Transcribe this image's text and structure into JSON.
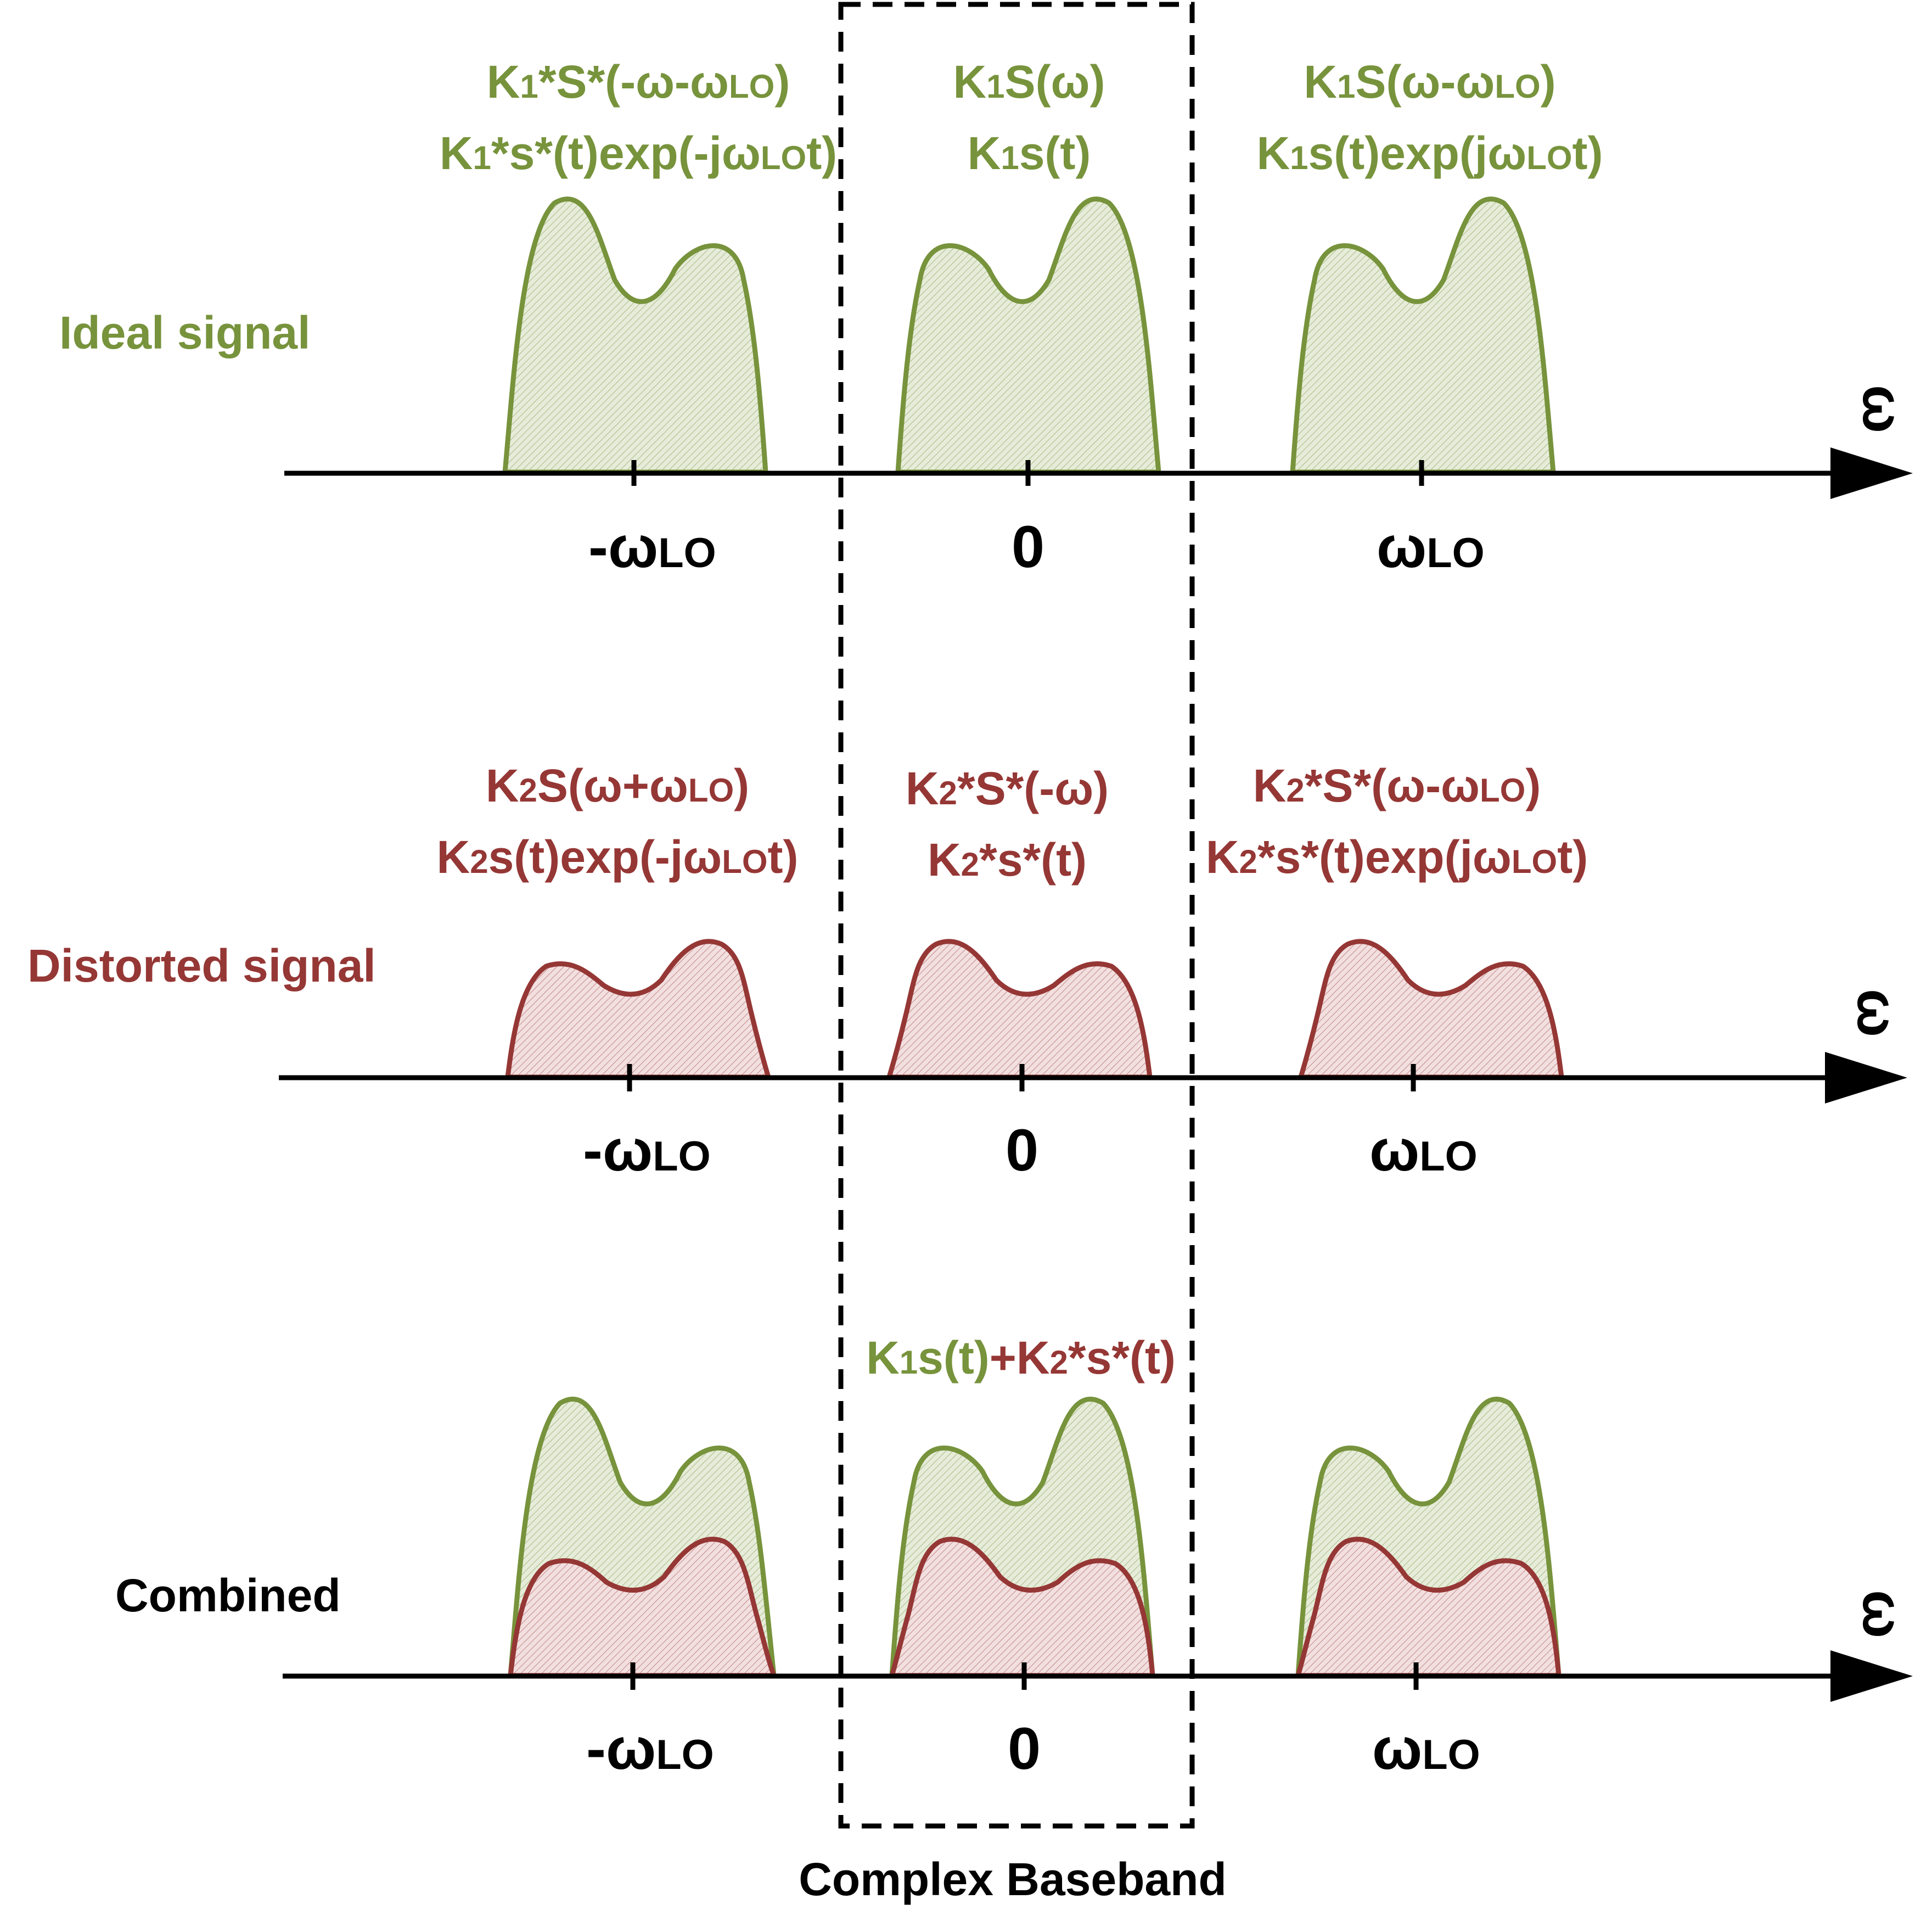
{
  "colors": {
    "ideal": "#77933c",
    "ideal_fill": "#e4ead6",
    "distorted": "#953735",
    "distorted_fill": "#f0dcdc",
    "axis": "#000000"
  },
  "rows": [
    {
      "id": "ideal",
      "label": "Ideal signal",
      "axis_symbol": "ω",
      "ticks": [
        {
          "main": "-ω",
          "sub": "LO"
        },
        {
          "main": "0",
          "sub": ""
        },
        {
          "main": "ω",
          "sub": "LO"
        }
      ],
      "annotations": [
        {
          "line1": {
            "p1": "K",
            "s1": "1",
            "p2": "*S*(-ω-ω",
            "s2": "LO",
            "p3": ")"
          },
          "line2": {
            "p1": "K",
            "s1": "1",
            "p2": "*s*(t)exp(-jω",
            "s2": "LO",
            "p3": "t)"
          }
        },
        {
          "line1": {
            "p1": "K",
            "s1": "1",
            "p2": "S(ω)",
            "s2": "",
            "p3": ""
          },
          "line2": {
            "p1": "K",
            "s1": "1",
            "p2": "s(t)",
            "s2": "",
            "p3": ""
          }
        },
        {
          "line1": {
            "p1": "K",
            "s1": "1",
            "p2": "S(ω-ω",
            "s2": "LO",
            "p3": ")"
          },
          "line2": {
            "p1": "K",
            "s1": "1",
            "p2": "s(t)exp(jω",
            "s2": "LO",
            "p3": "t)"
          }
        }
      ]
    },
    {
      "id": "distorted",
      "label": "Distorted signal",
      "axis_symbol": "ω",
      "ticks": [
        {
          "main": "-ω",
          "sub": "LO"
        },
        {
          "main": "0",
          "sub": ""
        },
        {
          "main": "ω",
          "sub": "LO"
        }
      ],
      "annotations": [
        {
          "line1": {
            "p1": "K",
            "s1": "2",
            "p2": "S(ω+ω",
            "s2": "LO",
            "p3": ")"
          },
          "line2": {
            "p1": "K",
            "s1": "2",
            "p2": "s(t)exp(-jω",
            "s2": "LO",
            "p3": "t)"
          }
        },
        {
          "line1": {
            "p1": "K",
            "s1": "2",
            "p2": "*S*(-ω)",
            "s2": "",
            "p3": ""
          },
          "line2": {
            "p1": "K",
            "s1": "2",
            "p2": "*s*(t)",
            "s2": "",
            "p3": ""
          }
        },
        {
          "line1": {
            "p1": "K",
            "s1": "2",
            "p2": "*S*(ω-ω",
            "s2": "LO",
            "p3": ")"
          },
          "line2": {
            "p1": "K",
            "s1": "2",
            "p2": "*s*(t)exp(jω",
            "s2": "LO",
            "p3": "t)"
          }
        }
      ]
    },
    {
      "id": "combined",
      "label": "Combined",
      "axis_symbol": "ω",
      "ticks": [
        {
          "main": "-ω",
          "sub": "LO"
        },
        {
          "main": "0",
          "sub": ""
        },
        {
          "main": "ω",
          "sub": "LO"
        }
      ],
      "combined_annotation": {
        "green_p1": "K",
        "green_s1": "1",
        "green_p2": "s(t)",
        "plus": "+",
        "red_p1": "K",
        "red_s1": "2",
        "red_p2": "*s*(t)"
      }
    }
  ],
  "baseband_label": "Complex Baseband"
}
